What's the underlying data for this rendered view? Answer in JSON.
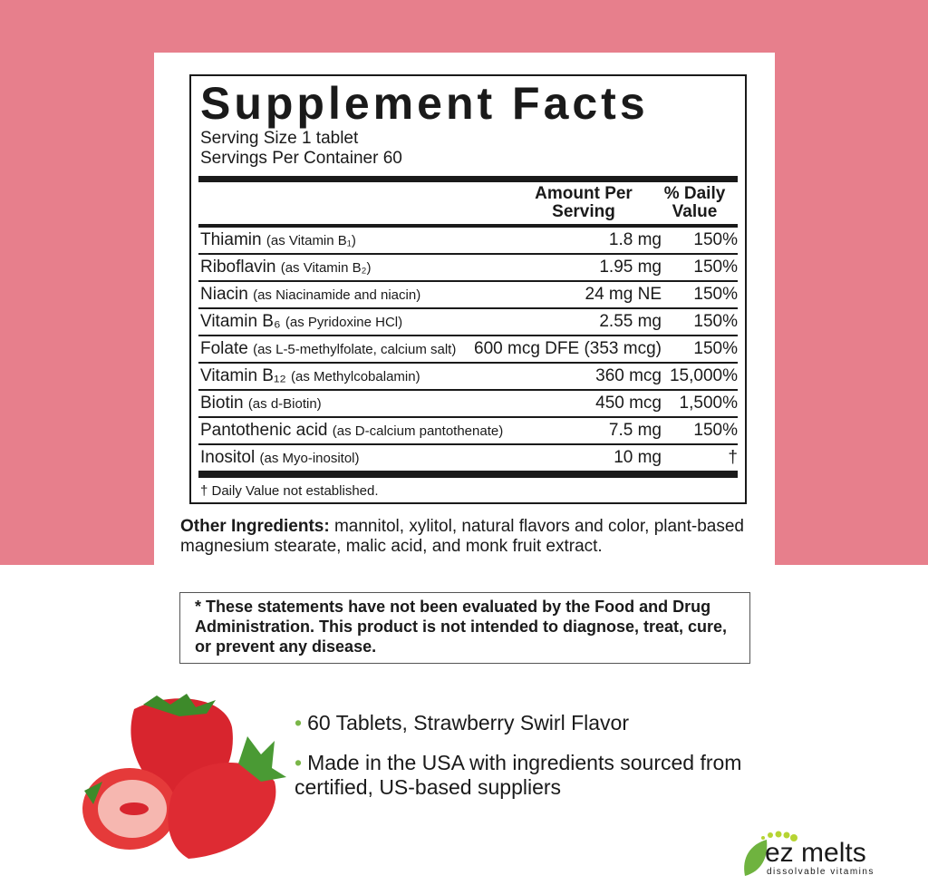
{
  "title": "Supplement Facts",
  "serving_size": "Serving Size 1 tablet",
  "servings_per_container": "Servings Per Container 60",
  "headers": {
    "amount": "Amount Per Serving",
    "daily_value": "% Daily Value"
  },
  "rows": [
    {
      "name": "Thiamin",
      "detail": "(as Vitamin B₁)",
      "amount": "1.8 mg",
      "dv": "150%"
    },
    {
      "name": "Riboflavin",
      "detail": "(as Vitamin B₂)",
      "amount": "1.95 mg",
      "dv": "150%"
    },
    {
      "name": "Niacin",
      "detail": "(as Niacinamide and niacin)",
      "amount": "24 mg NE",
      "dv": "150%"
    },
    {
      "name": "Vitamin B₆",
      "detail": "(as Pyridoxine HCl)",
      "amount": "2.55 mg",
      "dv": "150%"
    },
    {
      "name": "Folate",
      "detail": "(as L-5-methylfolate, calcium salt)",
      "amount": "600 mcg DFE (353 mcg)",
      "dv": "150%"
    },
    {
      "name": "Vitamin B₁₂",
      "detail": "(as Methylcobalamin)",
      "amount": "360 mcg",
      "dv": "15,000%"
    },
    {
      "name": "Biotin",
      "detail": "(as d-Biotin)",
      "amount": "450 mcg",
      "dv": "1,500%"
    },
    {
      "name": "Pantothenic acid",
      "detail": "(as D-calcium pantothenate)",
      "amount": "7.5 mg",
      "dv": "150%"
    },
    {
      "name": "Inositol",
      "detail": "(as Myo-inositol)",
      "amount": "10 mg",
      "dv": "†"
    }
  ],
  "footnote": "† Daily Value not established.",
  "other_label": "Other Ingredients:",
  "other_text": " mannitol, xylitol, natural flavors and color, plant-based magnesium stearate, malic acid, and monk fruit extract.",
  "disclaimer": "* These statements have not been evaluated by the Food and Drug Administration. This product is not intended to diagnose, treat, cure, or prevent any disease.",
  "bullets": [
    "60 Tablets, Strawberry Swirl Flavor",
    "Made in the USA with ingredients sourced from certified, US-based suppliers"
  ],
  "logo": {
    "name": "ez melts",
    "tagline": "dissolvable vitamins"
  },
  "colors": {
    "background": "#e77f8c",
    "accent": "#7ab648"
  }
}
